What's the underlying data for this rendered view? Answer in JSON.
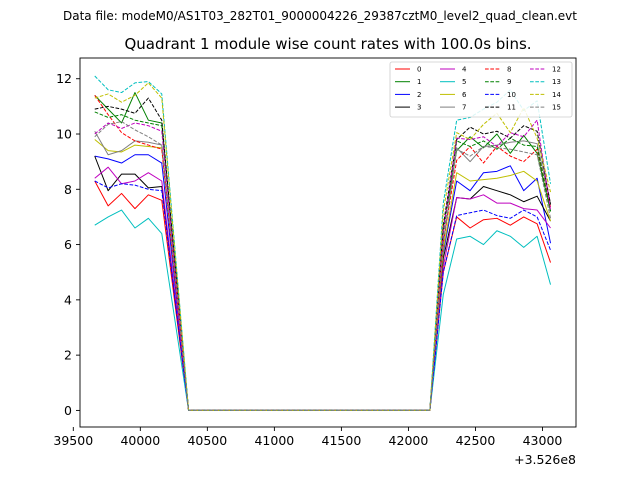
{
  "suptitle": "Data file: modeM0/AS1T03_282T01_9000004226_29387cztM0_level2_quad_clean.evt",
  "chart_data": {
    "type": "line",
    "title": "Quadrant 1 module wise count rates with 100.0s bins.",
    "xlabel": "",
    "ylabel": "",
    "x_offset_label": "+3.526e8",
    "xlim": [
      39550,
      43250
    ],
    "ylim": [
      -0.6,
      12.75
    ],
    "x_ticks": [
      39500,
      40000,
      40500,
      41000,
      41500,
      42000,
      42500,
      43000
    ],
    "x_tick_labels": [
      "39500",
      "40000",
      "40500",
      "41000",
      "41500",
      "42000",
      "42500",
      "43000"
    ],
    "y_ticks": [
      0,
      2,
      4,
      6,
      8,
      10,
      12
    ],
    "y_tick_labels": [
      "0",
      "2",
      "4",
      "6",
      "8",
      "10",
      "12"
    ],
    "x": [
      39660,
      39760,
      39860,
      39960,
      40060,
      40160,
      40260,
      40360,
      40460,
      40560,
      40660,
      40760,
      40860,
      40960,
      41060,
      41160,
      41260,
      41360,
      41460,
      41560,
      41660,
      41760,
      41860,
      41960,
      42060,
      42160,
      42260,
      42360,
      42460,
      42560,
      42660,
      42760,
      42860,
      42960,
      43060
    ],
    "legend_position": "top-right",
    "series": [
      {
        "name": "0",
        "color": "#ff0000",
        "dash": "solid",
        "values": [
          8.3,
          7.4,
          7.85,
          7.3,
          7.8,
          7.6,
          3.8,
          0,
          0,
          0,
          0,
          0,
          0,
          0,
          0,
          0,
          0,
          0,
          0,
          0,
          0,
          0,
          0,
          0,
          0,
          0,
          5.0,
          7.0,
          6.6,
          6.9,
          6.95,
          6.7,
          7.0,
          6.75,
          5.35
        ]
      },
      {
        "name": "1",
        "color": "#008000",
        "dash": "solid",
        "values": [
          11.4,
          10.9,
          10.4,
          11.5,
          10.5,
          10.4,
          5.2,
          0,
          0,
          0,
          0,
          0,
          0,
          0,
          0,
          0,
          0,
          0,
          0,
          0,
          0,
          0,
          0,
          0,
          0,
          0,
          6.6,
          9.4,
          9.9,
          9.5,
          10.0,
          9.3,
          9.95,
          9.3,
          7.2
        ]
      },
      {
        "name": "2",
        "color": "#0000ff",
        "dash": "solid",
        "values": [
          9.2,
          9.1,
          8.95,
          9.25,
          9.25,
          8.95,
          4.5,
          0,
          0,
          0,
          0,
          0,
          0,
          0,
          0,
          0,
          0,
          0,
          0,
          0,
          0,
          0,
          0,
          0,
          0,
          0,
          5.7,
          8.3,
          7.95,
          8.6,
          8.65,
          8.85,
          7.95,
          8.4,
          6.05
        ]
      },
      {
        "name": "3",
        "color": "#000000",
        "dash": "solid",
        "values": [
          9.2,
          7.95,
          8.55,
          8.55,
          8.05,
          8.1,
          4.05,
          0,
          0,
          0,
          0,
          0,
          0,
          0,
          0,
          0,
          0,
          0,
          0,
          0,
          0,
          0,
          0,
          0,
          0,
          0,
          5.5,
          7.7,
          7.65,
          8.1,
          7.95,
          7.8,
          7.55,
          7.75,
          6.85
        ]
      },
      {
        "name": "4",
        "color": "#bf00bf",
        "dash": "solid",
        "values": [
          8.4,
          8.8,
          8.2,
          8.3,
          8.6,
          8.3,
          4.15,
          0,
          0,
          0,
          0,
          0,
          0,
          0,
          0,
          0,
          0,
          0,
          0,
          0,
          0,
          0,
          0,
          0,
          0,
          0,
          5.2,
          7.7,
          7.65,
          7.8,
          7.5,
          7.5,
          7.3,
          7.25,
          6.6
        ]
      },
      {
        "name": "5",
        "color": "#00bfbf",
        "dash": "solid",
        "values": [
          6.7,
          7.0,
          7.25,
          6.6,
          6.95,
          6.4,
          3.2,
          0,
          0,
          0,
          0,
          0,
          0,
          0,
          0,
          0,
          0,
          0,
          0,
          0,
          0,
          0,
          0,
          0,
          0,
          0,
          4.2,
          6.2,
          6.3,
          6.0,
          6.5,
          6.3,
          5.9,
          6.3,
          4.55
        ]
      },
      {
        "name": "6",
        "color": "#bfbf00",
        "dash": "solid",
        "values": [
          9.8,
          9.4,
          9.35,
          9.6,
          9.55,
          9.5,
          4.75,
          0,
          0,
          0,
          0,
          0,
          0,
          0,
          0,
          0,
          0,
          0,
          0,
          0,
          0,
          0,
          0,
          0,
          0,
          0,
          5.8,
          8.6,
          8.3,
          8.35,
          8.4,
          8.5,
          8.65,
          8.3,
          6.85
        ]
      },
      {
        "name": "7",
        "color": "#7f7f7f",
        "dash": "solid",
        "values": [
          10.1,
          9.25,
          9.4,
          9.75,
          9.7,
          9.6,
          4.8,
          0,
          0,
          0,
          0,
          0,
          0,
          0,
          0,
          0,
          0,
          0,
          0,
          0,
          0,
          0,
          0,
          0,
          0,
          0,
          6.0,
          9.5,
          9.0,
          9.55,
          9.6,
          9.7,
          9.75,
          9.65,
          7.5
        ]
      },
      {
        "name": "8",
        "color": "#ff0000",
        "dash": "dashed",
        "values": [
          11.4,
          10.7,
          10.05,
          9.75,
          9.6,
          9.45,
          4.7,
          0,
          0,
          0,
          0,
          0,
          0,
          0,
          0,
          0,
          0,
          0,
          0,
          0,
          0,
          0,
          0,
          0,
          0,
          0,
          6.1,
          9.05,
          9.55,
          8.95,
          9.55,
          9.2,
          9.0,
          9.45,
          7.35
        ]
      },
      {
        "name": "9",
        "color": "#008000",
        "dash": "dashed",
        "values": [
          10.8,
          10.6,
          10.7,
          10.5,
          10.4,
          10.3,
          5.15,
          0,
          0,
          0,
          0,
          0,
          0,
          0,
          0,
          0,
          0,
          0,
          0,
          0,
          0,
          0,
          0,
          0,
          0,
          0,
          6.4,
          9.75,
          9.55,
          9.75,
          9.45,
          9.85,
          9.6,
          9.55,
          7.2
        ]
      },
      {
        "name": "10",
        "color": "#0000ff",
        "dash": "dashed",
        "values": [
          8.3,
          8.05,
          8.2,
          8.15,
          8.0,
          7.95,
          3.95,
          0,
          0,
          0,
          0,
          0,
          0,
          0,
          0,
          0,
          0,
          0,
          0,
          0,
          0,
          0,
          0,
          0,
          0,
          0,
          5.0,
          7.05,
          7.15,
          7.25,
          7.05,
          6.95,
          7.25,
          7.0,
          5.8
        ]
      },
      {
        "name": "11",
        "color": "#000000",
        "dash": "dashed",
        "values": [
          10.9,
          11.0,
          10.9,
          10.75,
          11.3,
          10.5,
          5.25,
          0,
          0,
          0,
          0,
          0,
          0,
          0,
          0,
          0,
          0,
          0,
          0,
          0,
          0,
          0,
          0,
          0,
          0,
          0,
          6.7,
          9.8,
          10.25,
          10.0,
          10.1,
          9.85,
          10.3,
          10.1,
          7.45
        ]
      },
      {
        "name": "12",
        "color": "#bf00bf",
        "dash": "dashed",
        "values": [
          10.0,
          10.4,
          10.2,
          10.4,
          10.3,
          10.1,
          5.05,
          0,
          0,
          0,
          0,
          0,
          0,
          0,
          0,
          0,
          0,
          0,
          0,
          0,
          0,
          0,
          0,
          0,
          0,
          0,
          6.5,
          9.85,
          9.8,
          9.9,
          9.55,
          10.05,
          9.9,
          10.5,
          7.25
        ]
      },
      {
        "name": "13",
        "color": "#00bfbf",
        "dash": "dashed",
        "values": [
          12.1,
          11.6,
          11.5,
          11.85,
          11.9,
          11.45,
          5.75,
          0,
          0,
          0,
          0,
          0,
          0,
          0,
          0,
          0,
          0,
          0,
          0,
          0,
          0,
          0,
          0,
          0,
          0,
          0,
          7.5,
          10.5,
          10.6,
          10.9,
          11.15,
          11.6,
          10.85,
          11.2,
          8.2
        ]
      },
      {
        "name": "14",
        "color": "#bfbf00",
        "dash": "dashed",
        "values": [
          11.3,
          11.45,
          11.15,
          11.4,
          11.85,
          11.3,
          5.65,
          0,
          0,
          0,
          0,
          0,
          0,
          0,
          0,
          0,
          0,
          0,
          0,
          0,
          0,
          0,
          0,
          0,
          0,
          0,
          7.2,
          10.05,
          9.8,
          10.35,
          10.75,
          10.05,
          10.95,
          9.85,
          7.9
        ]
      },
      {
        "name": "15",
        "color": "#7f7f7f",
        "dash": "dashed",
        "values": [
          9.9,
          10.35,
          10.45,
          10.15,
          9.9,
          9.6,
          4.8,
          0,
          0,
          0,
          0,
          0,
          0,
          0,
          0,
          0,
          0,
          0,
          0,
          0,
          0,
          0,
          0,
          0,
          0,
          0,
          6.1,
          9.45,
          9.2,
          9.55,
          9.5,
          9.45,
          9.35,
          9.25,
          6.95
        ]
      }
    ]
  }
}
